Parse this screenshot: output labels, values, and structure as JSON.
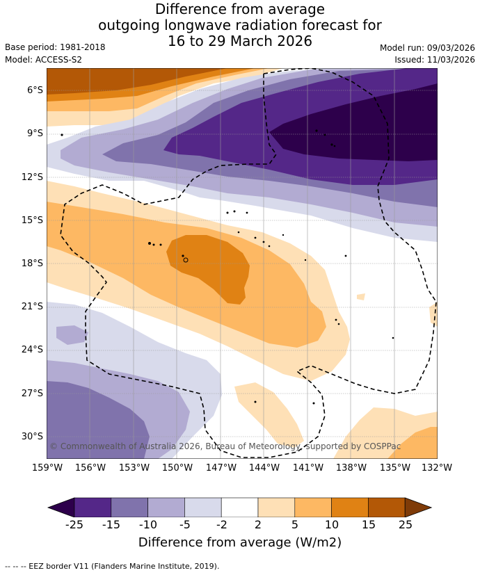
{
  "header": {
    "title_lines": [
      "Difference from average",
      "outgoing longwave radiation forecast for",
      "16 to 29 March 2026"
    ],
    "base_period": "Base period: 1981-2018",
    "model": "Model: ACCESS-S2",
    "model_run": "Model run: 09/03/2026",
    "issued": "Issued: 11/03/2026"
  },
  "map": {
    "lat_labels": [
      "6°S",
      "9°S",
      "12°S",
      "15°S",
      "18°S",
      "21°S",
      "24°S",
      "27°S",
      "30°S"
    ],
    "lon_labels": [
      "159°W",
      "156°W",
      "153°W",
      "150°W",
      "147°W",
      "144°W",
      "141°W",
      "138°W",
      "135°W",
      "132°W"
    ],
    "copyright": "© Commonwealth of Australia 2026, Bureau of Meteorology, supported by COSPPac",
    "land_color": "#000000",
    "eez_color": "#000000"
  },
  "legend": {
    "tick_labels": [
      "-25",
      "-15",
      "-10",
      "-5",
      "-2",
      "2",
      "5",
      "10",
      "15",
      "25"
    ],
    "title": "Difference from average (W/m2)",
    "colors": [
      "#2d004b",
      "#542788",
      "#8073ac",
      "#b2abd2",
      "#d8daeb",
      "#ffffff",
      "#fee0b6",
      "#fdb863",
      "#e08214",
      "#b35806",
      "#7f3b08"
    ]
  },
  "footer": {
    "eez_note": "--  --  -- EEZ border V11 (Flanders Marine Institute, 2019)."
  }
}
